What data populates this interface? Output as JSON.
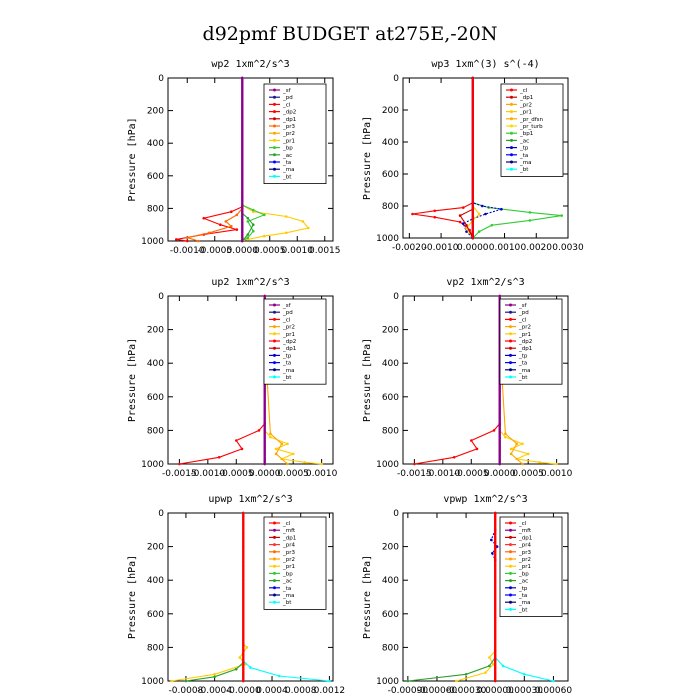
{
  "figure_title": "d92pmf  BUDGET at275E,-20N",
  "colors": {
    "sf": "#8b008b",
    "mft": "#8b008b",
    "pd": "#1a1a8c",
    "cl": "#ff0000",
    "dp2": "#ff0000",
    "dp1": "#cc0000",
    "pr4": "#ff3333",
    "pr3": "#ff6a00",
    "pr2": "#ffa500",
    "pr1": "#ffcc00",
    "pr_dfsn": "#ffaa00",
    "pr_turb": "#ffd700",
    "bp": "#33cc33",
    "bp1": "#33cc33",
    "ac": "#2ca02c",
    "tp": "#0000cd",
    "ta": "#0000ff",
    "ma": "#000080",
    "bt": "#00ffff"
  },
  "chart_data": [
    {
      "type": "line",
      "title": "wp2  1xm^2/s^3",
      "ylabel": "Pressure [hPa]",
      "xticks": [
        "-0.0010",
        "-0.0005",
        "0.0000",
        "0.0005",
        "0.0010",
        "0.0015"
      ],
      "yticks": [
        "0",
        "200",
        "400",
        "600",
        "800",
        "1000"
      ],
      "xlim": [
        -0.00135,
        0.00165
      ],
      "ylim": [
        1000,
        0
      ],
      "legend": [
        "_sf",
        "_pd",
        "_cl",
        "_dp2",
        "_dp1",
        "_pr3",
        "_pr2",
        "_pr1",
        "_bp",
        "_ac",
        "_ta",
        "_ma",
        "_bt"
      ],
      "series": [
        {
          "name": "_pr1",
          "key": "pr1",
          "x": [
            0,
            0,
            0.0002,
            0.0008,
            0.0011,
            0.0012,
            0.0008,
            0.0004,
            0.0001,
            0
          ],
          "y": [
            0,
            780,
            820,
            850,
            880,
            920,
            950,
            970,
            990,
            1000
          ]
        },
        {
          "name": "_dp2",
          "key": "dp2",
          "x": [
            0,
            0,
            -0.0002,
            -0.0007,
            -0.0004,
            -0.0001,
            -0.0007,
            -0.0012,
            -0.001
          ],
          "y": [
            0,
            790,
            820,
            860,
            900,
            930,
            960,
            990,
            1000
          ]
        },
        {
          "name": "_pr3",
          "key": "pr3",
          "x": [
            0,
            0,
            -0.0001,
            -0.0003,
            -0.0002,
            -0.0006,
            -0.001,
            -0.0008
          ],
          "y": [
            0,
            800,
            840,
            880,
            910,
            950,
            980,
            1000
          ]
        },
        {
          "name": "_bp",
          "key": "bp",
          "x": [
            0,
            0,
            0.0002,
            0.0004,
            0.0001,
            0.0002,
            0.0001,
            0
          ],
          "y": [
            0,
            780,
            810,
            840,
            880,
            940,
            980,
            1000
          ]
        },
        {
          "name": "_ac",
          "key": "ac",
          "x": [
            0,
            0,
            0.0001,
            0.0002,
            0.0001,
            0
          ],
          "y": [
            0,
            830,
            860,
            900,
            960,
            1000
          ]
        },
        {
          "name": "_sf",
          "key": "sf",
          "x": [
            0,
            0
          ],
          "y": [
            0,
            1000
          ]
        }
      ]
    },
    {
      "type": "line",
      "title": "wp3  1xm^(3) s^(-4)",
      "ylabel": "Pressure [hPa]",
      "xticks": [
        "-0.0020",
        "-0.0010",
        "0.0000",
        "0.0010",
        "0.0020",
        "0.0030"
      ],
      "yticks": [
        "0",
        "200",
        "400",
        "600",
        "800",
        "1000"
      ],
      "xlim": [
        -0.0022,
        0.003
      ],
      "ylim": [
        1000,
        0
      ],
      "legend": [
        "_cl",
        "_dp1",
        "_pr2",
        "_pr1",
        "_pr_dfsn",
        "_pr_turb",
        "_bp1",
        "_ac",
        "_tp",
        "_ta",
        "_ma",
        "_bt"
      ],
      "series": [
        {
          "name": "_bp1",
          "key": "bp1",
          "x": [
            0,
            0,
            0.0005,
            0.0018,
            0.0028,
            0.0018,
            0.0006,
            0.0002,
            0
          ],
          "y": [
            0,
            780,
            810,
            840,
            860,
            890,
            920,
            960,
            1000
          ]
        },
        {
          "name": "_cl",
          "key": "cl",
          "x": [
            0,
            0,
            -0.0003,
            -0.0012,
            -0.0019,
            -0.0012,
            -0.0004,
            -0.0001,
            0
          ],
          "y": [
            0,
            780,
            810,
            830,
            850,
            870,
            900,
            950,
            1000
          ]
        },
        {
          "name": "_tp",
          "key": "tp",
          "x": [
            0,
            0,
            0.0003,
            0.0009,
            0.0004,
            0,
            -0.0003,
            -0.0002,
            0
          ],
          "y": [
            0,
            780,
            800,
            820,
            850,
            880,
            910,
            960,
            1000
          ]
        },
        {
          "name": "_pr1",
          "key": "pr1",
          "x": [
            0,
            0,
            0.0002,
            0,
            -0.0002,
            0
          ],
          "y": [
            0,
            800,
            850,
            890,
            940,
            1000
          ]
        },
        {
          "name": "_dp1",
          "key": "dp1",
          "x": [
            0,
            0,
            -0.0004,
            -0.0002,
            0
          ],
          "y": [
            0,
            820,
            860,
            920,
            1000
          ]
        },
        {
          "name": "_ma",
          "key": "ma",
          "x": [
            0,
            0
          ],
          "y": [
            0,
            1000
          ]
        }
      ]
    },
    {
      "type": "line",
      "title": "up2  1xm^2/s^3",
      "ylabel": "Pressure [hPa]",
      "xticks": [
        "-0.0015",
        "-0.0010",
        "-0.0005",
        "0.0000",
        "0.0005",
        "0.0010"
      ],
      "yticks": [
        "0",
        "200",
        "400",
        "600",
        "800",
        "1000"
      ],
      "xlim": [
        -0.0017,
        0.0012
      ],
      "ylim": [
        1000,
        0
      ],
      "legend": [
        "_sf",
        "_pd",
        "_cl",
        "_pr2",
        "_pr1",
        "_dp2",
        "_dp1",
        "_tp",
        "_ta",
        "_ma",
        "_bt"
      ],
      "series": [
        {
          "name": "_dp2",
          "key": "dp2",
          "x": [
            0,
            0,
            -0.0001,
            -0.0005,
            -0.0004,
            -0.0008,
            -0.0015
          ],
          "y": [
            0,
            760,
            800,
            860,
            910,
            960,
            1000
          ]
        },
        {
          "name": "_pr1",
          "key": "pr1",
          "x": [
            0,
            0,
            0.0001,
            0.0004,
            0.0002,
            0.0005,
            0.0003,
            0.0007,
            0.001
          ],
          "y": [
            0,
            800,
            840,
            880,
            910,
            940,
            970,
            990,
            1000
          ]
        },
        {
          "name": "_pr2",
          "key": "pr2",
          "x": [
            0,
            0.0001,
            0,
            0.0001,
            0.0003,
            0.0002,
            0.0004
          ],
          "y": [
            0,
            180,
            260,
            820,
            880,
            940,
            1000
          ]
        },
        {
          "name": "_sf",
          "key": "sf",
          "x": [
            0,
            0
          ],
          "y": [
            0,
            1000
          ]
        }
      ]
    },
    {
      "type": "line",
      "title": "vp2  1xm^2/s^3",
      "ylabel": "Pressure [hPa]",
      "xticks": [
        "-0.0015",
        "-0.0010",
        "-0.0005",
        "0.0000",
        "0.0005",
        "0.0010"
      ],
      "yticks": [
        "0",
        "200",
        "400",
        "600",
        "800",
        "1000"
      ],
      "xlim": [
        -0.0017,
        0.0012
      ],
      "ylim": [
        1000,
        0
      ],
      "legend": [
        "_sf",
        "_pd",
        "_cl",
        "_pr2",
        "_pr1",
        "_dp2",
        "_dp1",
        "_tp",
        "_ta",
        "_ma",
        "_bt"
      ],
      "series": [
        {
          "name": "_dp2",
          "key": "dp2",
          "x": [
            0,
            0,
            -0.0001,
            -0.0005,
            -0.0004,
            -0.0008,
            -0.0015
          ],
          "y": [
            0,
            760,
            800,
            860,
            910,
            960,
            1000
          ]
        },
        {
          "name": "_pr1",
          "key": "pr1",
          "x": [
            0,
            0,
            0.0001,
            0.0004,
            0.0002,
            0.0005,
            0.0003,
            0.0007,
            0.001
          ],
          "y": [
            0,
            800,
            840,
            880,
            910,
            940,
            970,
            990,
            1000
          ]
        },
        {
          "name": "_pr2",
          "key": "pr2",
          "x": [
            0,
            0.0001,
            0,
            0.0001,
            0.0003,
            0.0002,
            0.0004
          ],
          "y": [
            0,
            180,
            260,
            820,
            880,
            940,
            1000
          ]
        },
        {
          "name": "_sf",
          "key": "sf",
          "x": [
            0,
            0
          ],
          "y": [
            0,
            1000
          ]
        }
      ]
    },
    {
      "type": "line",
      "title": "upwp  1xm^2/s^3",
      "ylabel": "Pressure [hPa]",
      "xticks": [
        "-0.0008",
        "-0.0004",
        "-0.0000",
        "0.0004",
        "0.0008",
        "0.0012"
      ],
      "yticks": [
        "0",
        "200",
        "400",
        "600",
        "800",
        "1000"
      ],
      "xlim": [
        -0.00105,
        0.00125
      ],
      "ylim": [
        1000,
        0
      ],
      "legend": [
        "_cl",
        "_mft",
        "_dp1",
        "_pr4",
        "_pr3",
        "_pr2",
        "_pr1",
        "_bp",
        "_ac",
        "_ta",
        "_ma",
        "_bt"
      ],
      "series": [
        {
          "name": "_pr1",
          "key": "pr1",
          "x": [
            0,
            0,
            5e-05,
            -5e-05,
            3e-05,
            -0.0004,
            -0.001
          ],
          "y": [
            0,
            780,
            800,
            860,
            900,
            960,
            1000
          ]
        },
        {
          "name": "_bt",
          "key": "bt",
          "x": [
            0,
            0,
            0.0001,
            0.0005,
            0.0012
          ],
          "y": [
            0,
            880,
            920,
            970,
            1000
          ]
        },
        {
          "name": "_ac",
          "key": "ac",
          "x": [
            0,
            0,
            -0.0001,
            -0.0004,
            -0.0008
          ],
          "y": [
            0,
            890,
            930,
            975,
            1000
          ]
        },
        {
          "name": "_cl",
          "key": "cl",
          "x": [
            0,
            0
          ],
          "y": [
            0,
            1000
          ]
        }
      ]
    },
    {
      "type": "line",
      "title": "vpwp  1xm^2/s^3",
      "ylabel": "Pressure [hPa]",
      "xticks": [
        "-0.00090",
        "-0.00060",
        "-0.00030",
        "0.00000",
        "0.00030",
        "0.00060"
      ],
      "yticks": [
        "0",
        "200",
        "400",
        "600",
        "800",
        "1000"
      ],
      "xlim": [
        -0.00095,
        0.00075
      ],
      "ylim": [
        1000,
        0
      ],
      "legend": [
        "_cl",
        "_mft",
        "_dp1",
        "_pr4",
        "_pr3",
        "_pr2",
        "_pr1",
        "_bp",
        "_ac",
        "_tp",
        "_ta",
        "_ma",
        "_bt"
      ],
      "series": [
        {
          "name": "_pr1",
          "key": "pr1",
          "x": [
            0,
            0,
            -6e-05,
            -2e-05,
            -0.0001,
            -0.0004
          ],
          "y": [
            0,
            820,
            860,
            900,
            950,
            1000
          ]
        },
        {
          "name": "_bt",
          "key": "bt",
          "x": [
            0,
            0,
            8e-05,
            0.0003,
            0.0006
          ],
          "y": [
            0,
            860,
            910,
            960,
            1000
          ]
        },
        {
          "name": "_ac",
          "key": "ac",
          "x": [
            0,
            0,
            -6e-05,
            -0.0003,
            -0.0009
          ],
          "y": [
            0,
            860,
            910,
            960,
            1000
          ]
        },
        {
          "name": "_tp",
          "key": "tp",
          "x": [
            0,
            -4e-05,
            2e-05,
            -3e-05,
            0
          ],
          "y": [
            100,
            160,
            200,
            240,
            280
          ]
        },
        {
          "name": "_cl",
          "key": "cl",
          "x": [
            0,
            0
          ],
          "y": [
            0,
            1000
          ]
        }
      ]
    }
  ]
}
